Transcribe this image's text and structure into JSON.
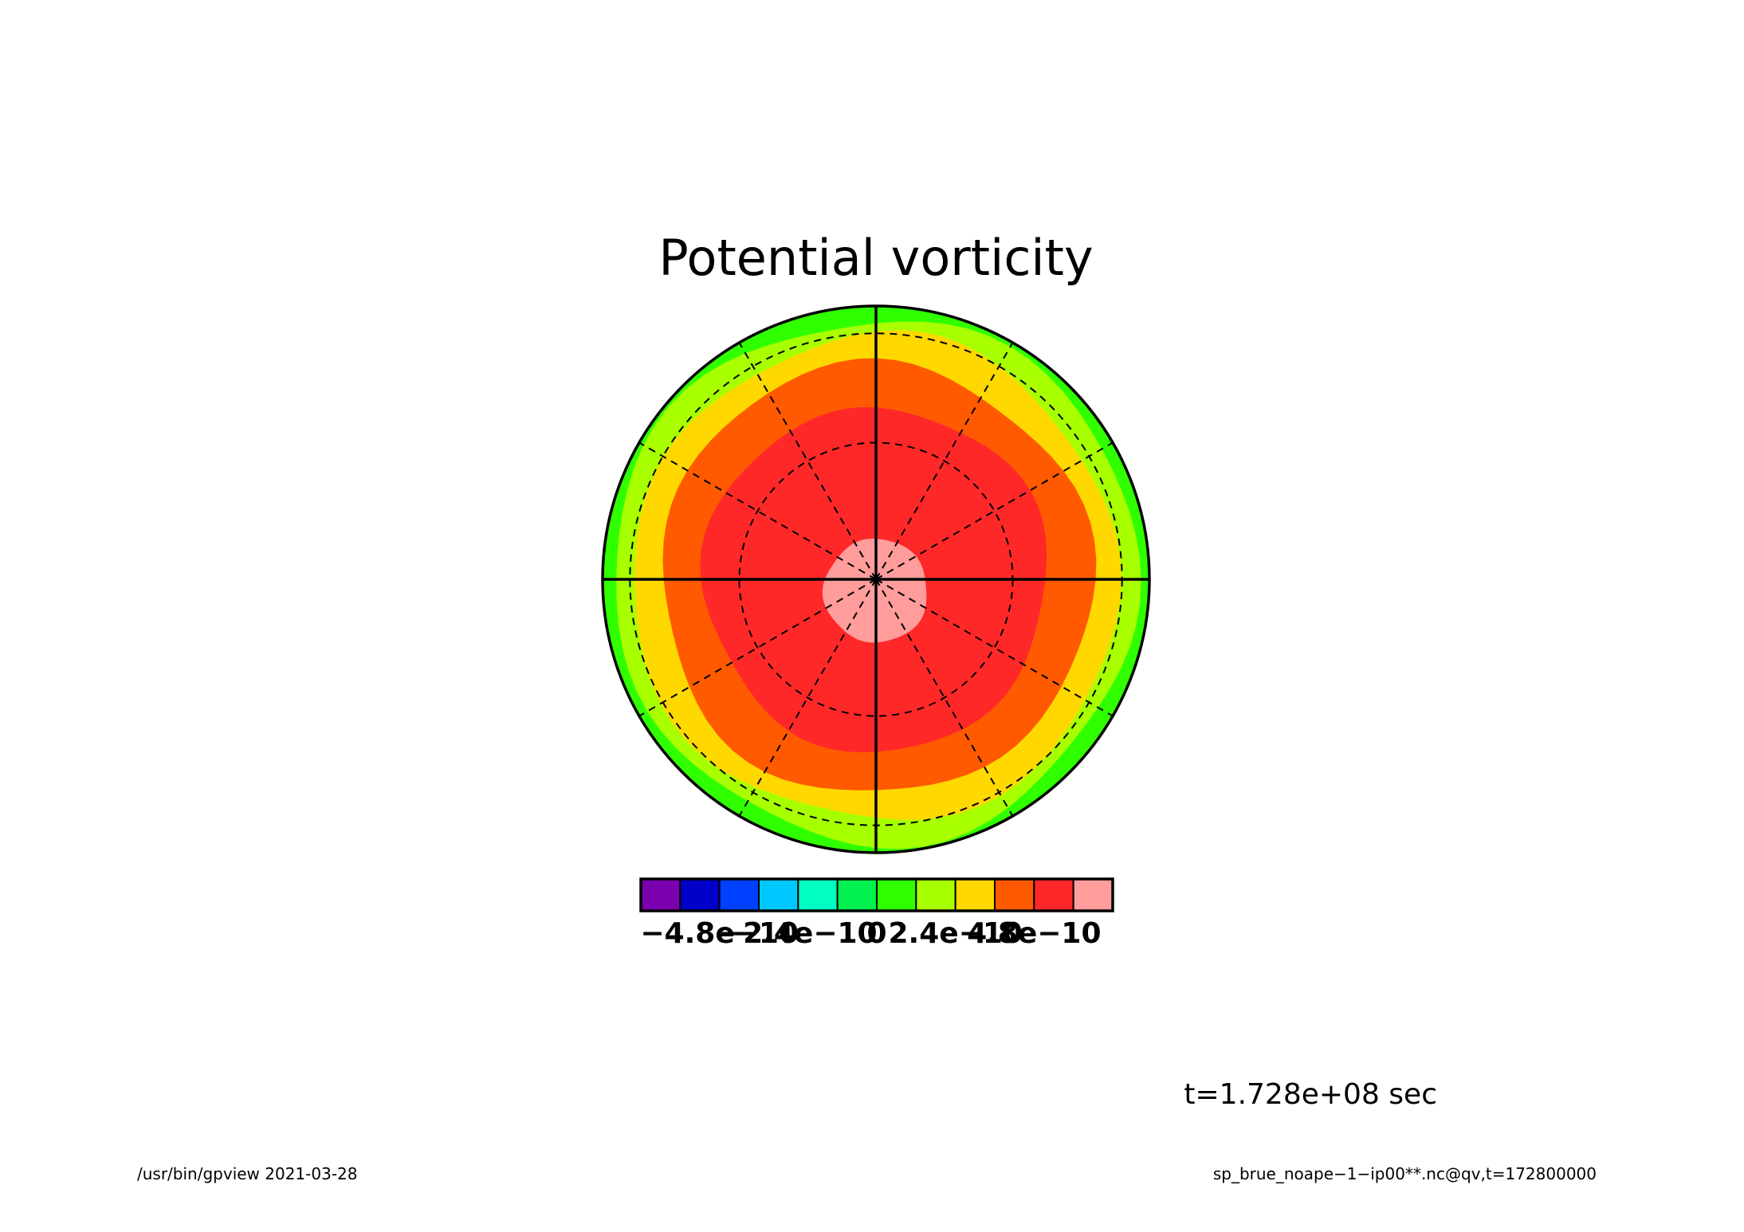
{
  "chart_data": {
    "type": "heatmap",
    "projection": "polar-stereographic",
    "title": "Potential vorticity",
    "color_levels": [
      {
        "color": "#7a00b0"
      },
      {
        "color": "#0000c8"
      },
      {
        "color": "#0040ff"
      },
      {
        "color": "#00c8ff"
      },
      {
        "color": "#00ffc0"
      },
      {
        "color": "#00f050"
      },
      {
        "color": "#30ff00"
      },
      {
        "color": "#a8ff00"
      },
      {
        "color": "#ffd800"
      },
      {
        "color": "#ff5a00"
      },
      {
        "color": "#ff2828"
      },
      {
        "color": "#ff9c9c"
      }
    ],
    "colorbar_tick_labels": [
      "−4.8e−10",
      "−2.4e−10",
      "0",
      "2.4e−10",
      "4.8e−10"
    ],
    "colorbar_tick_values": [
      -4.8e-10,
      -2.4e-10,
      0,
      2.4e-10,
      4.8e-10
    ],
    "field_bands": [
      {
        "level_index": 11,
        "approx_outer_radius_fraction": 0.19
      },
      {
        "level_index": 10,
        "approx_outer_radius_fraction": 0.63
      },
      {
        "level_index": 9,
        "approx_outer_radius_fraction": 0.79
      },
      {
        "level_index": 8,
        "approx_outer_radius_fraction": 0.89
      },
      {
        "level_index": 7,
        "approx_outer_radius_fraction": 0.96
      },
      {
        "level_index": 6,
        "approx_outer_radius_fraction": 1.0
      }
    ],
    "grid": {
      "meridian_step_deg": 30,
      "latitude_circles": 2
    }
  },
  "annotations": {
    "time": "t=1.728e+08 sec",
    "footer_left": "/usr/bin/gpview  2021-03-28",
    "footer_right": "sp_brue_noape−1−ip00**.nc@qv,t=172800000"
  },
  "colors": {
    "background": "#ffffff",
    "line": "#000000"
  }
}
